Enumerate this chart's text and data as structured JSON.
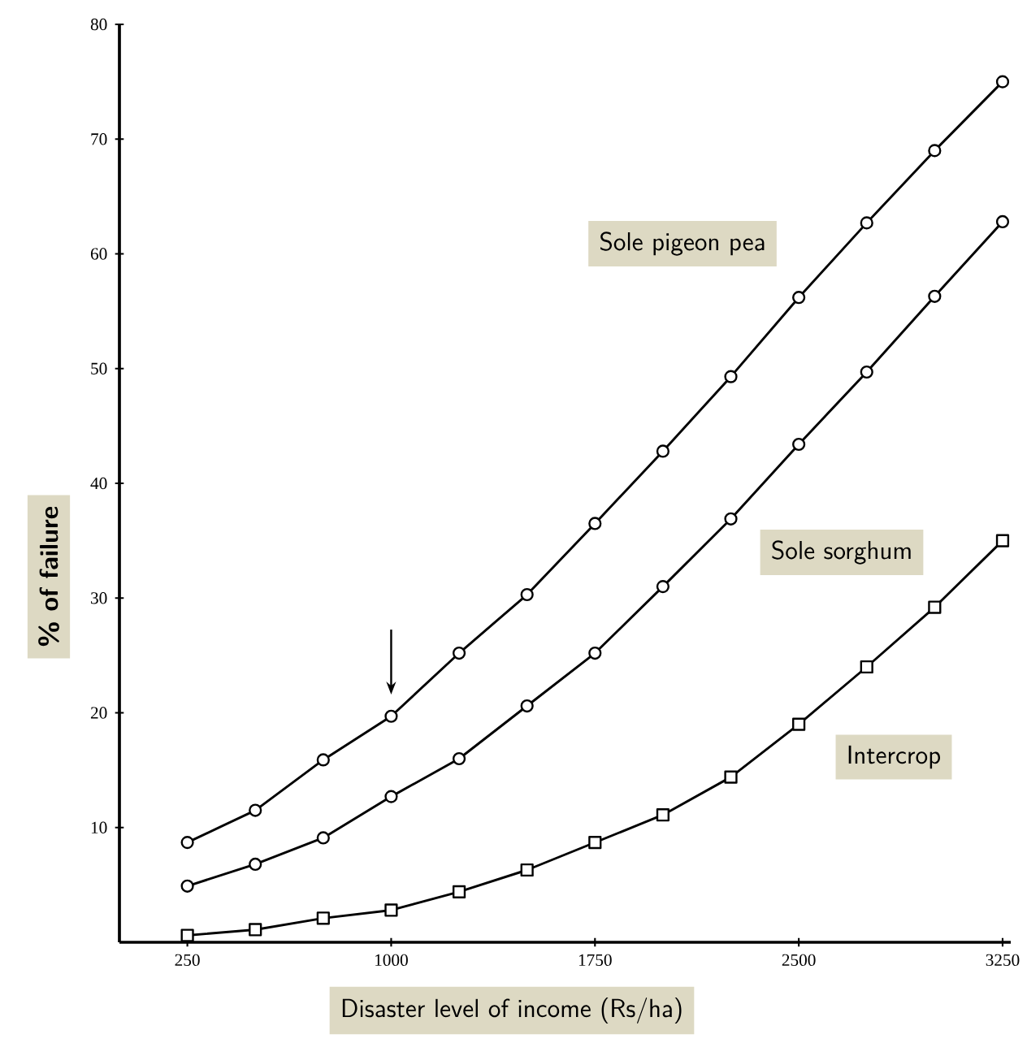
{
  "chart_data": {
    "type": "line",
    "xlabel": "Disaster level of income (Rs/ha)",
    "ylabel": "% of failure",
    "x": [
      250,
      500,
      750,
      1000,
      1250,
      1500,
      1750,
      2000,
      2250,
      2500,
      2750,
      3000,
      3250
    ],
    "xlim": [
      0,
      3280
    ],
    "xticks": [
      250,
      1000,
      1750,
      2500,
      3250
    ],
    "ylim": [
      0,
      80
    ],
    "yticks": [
      10,
      20,
      30,
      40,
      50,
      60,
      70,
      80
    ],
    "marker": "circle",
    "line_style": "solid",
    "series": [
      {
        "name": "Sole pigeon pea",
        "color": "#000000",
        "values": [
          8.7,
          11.5,
          15.9,
          19.7,
          25.2,
          30.3,
          36.5,
          42.8,
          49.3,
          56.2,
          62.7,
          69,
          75
        ]
      },
      {
        "name": "Sole sorghum",
        "color": "#000000",
        "values": [
          4.9,
          6.8,
          9.1,
          12.7,
          16,
          20.6,
          25.2,
          31,
          36.9,
          43.4,
          49.7,
          56.3,
          62.8
        ]
      },
      {
        "name": "Intercrop",
        "color": "#000000",
        "marker": "square",
        "values": [
          0.6,
          1.1,
          2.1,
          2.8,
          4.4,
          6.3,
          8.7,
          11.1,
          14.4,
          19,
          24,
          29.2,
          35
        ]
      }
    ]
  }
}
